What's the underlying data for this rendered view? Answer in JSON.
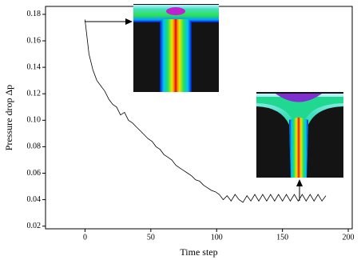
{
  "chart_data": {
    "type": "line",
    "xlabel": "Time step",
    "ylabel": "Pressure drop Δp",
    "x": [
      0,
      3,
      6,
      9,
      12,
      15,
      18,
      21,
      24,
      27,
      30,
      33,
      36,
      39,
      42,
      45,
      48,
      51,
      54,
      57,
      60,
      63,
      66,
      69,
      72,
      75,
      78,
      81,
      84,
      87,
      90,
      93,
      96,
      99,
      102,
      105,
      108,
      111,
      114,
      117,
      120,
      123,
      126,
      129,
      132,
      135,
      138,
      141,
      144,
      147,
      150,
      153,
      156,
      159,
      162,
      165,
      168,
      171,
      174,
      177,
      180,
      183
    ],
    "values": [
      0.176,
      0.15,
      0.138,
      0.13,
      0.126,
      0.122,
      0.116,
      0.112,
      0.11,
      0.104,
      0.106,
      0.1,
      0.098,
      0.095,
      0.092,
      0.089,
      0.086,
      0.084,
      0.08,
      0.078,
      0.074,
      0.072,
      0.07,
      0.066,
      0.064,
      0.062,
      0.06,
      0.058,
      0.055,
      0.054,
      0.051,
      0.049,
      0.047,
      0.046,
      0.044,
      0.04,
      0.043,
      0.039,
      0.044,
      0.04,
      0.038,
      0.043,
      0.039,
      0.044,
      0.039,
      0.044,
      0.039,
      0.044,
      0.039,
      0.044,
      0.039,
      0.044,
      0.039,
      0.044,
      0.039,
      0.044,
      0.039,
      0.044,
      0.039,
      0.044,
      0.039,
      0.043
    ],
    "color": "#000000",
    "xlim": [
      -30,
      203
    ],
    "ylim": [
      0.018,
      0.186
    ],
    "xticks": [
      0,
      50,
      100,
      150,
      200
    ],
    "yticks": [
      0.02,
      0.04,
      0.06,
      0.08,
      {
        "value": 0.1,
        "label": "0.10"
      },
      0.12,
      0.14,
      0.16,
      0.18
    ]
  }
}
